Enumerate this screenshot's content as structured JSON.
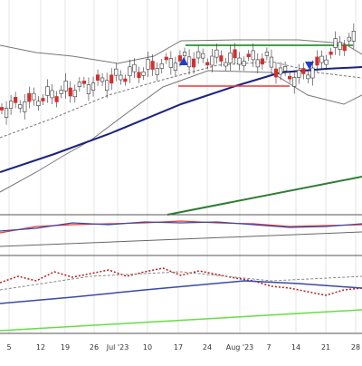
{
  "x_axis": {
    "labels": [
      "5",
      "12",
      "19",
      "26",
      "Jul '23",
      "10",
      "17",
      "24",
      "Aug '23",
      "7",
      "14",
      "21",
      "28"
    ]
  }
}
